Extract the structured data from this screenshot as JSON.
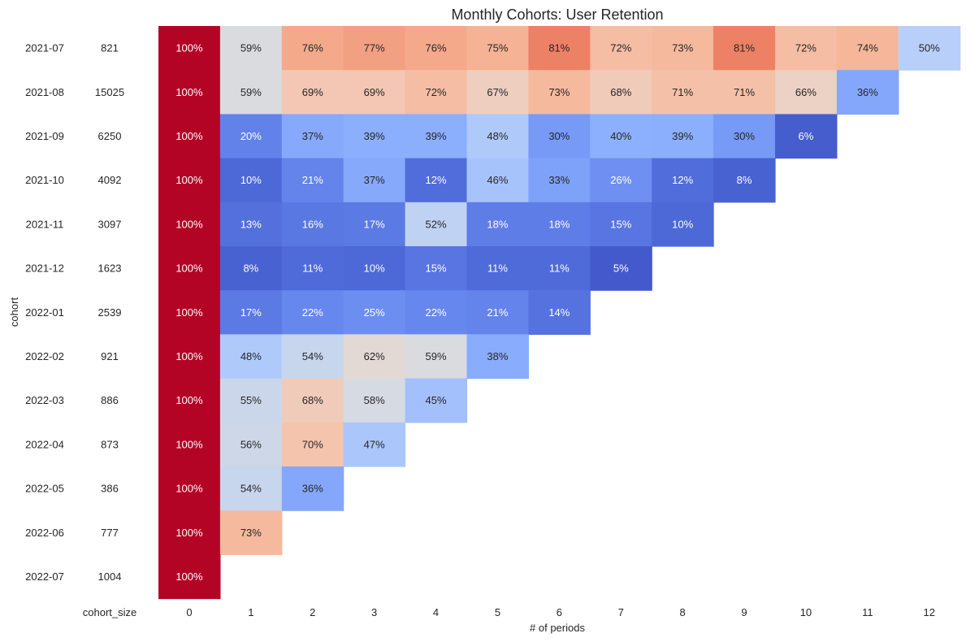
{
  "chart_data": {
    "type": "heatmap",
    "title": "Monthly Cohorts: User Retention",
    "xlabel": "# of periods",
    "ylabel": "cohort",
    "size_column_label": "cohort_size",
    "x_categories": [
      "0",
      "1",
      "2",
      "3",
      "4",
      "5",
      "6",
      "7",
      "8",
      "9",
      "10",
      "11",
      "12"
    ],
    "y_categories": [
      "2021-07",
      "2021-08",
      "2021-09",
      "2021-10",
      "2021-11",
      "2021-12",
      "2022-01",
      "2022-02",
      "2022-03",
      "2022-04",
      "2022-05",
      "2022-06",
      "2022-07"
    ],
    "cohort_size": [
      "821",
      "15025",
      "6250",
      "4092",
      "3097",
      "1623",
      "2539",
      "921",
      "886",
      "873",
      "386",
      "777",
      "1004"
    ],
    "value_format": "percent",
    "colormap": "coolwarm",
    "colorscale_range": [
      0,
      1
    ],
    "values": [
      [
        100,
        59,
        76,
        77,
        76,
        75,
        81,
        72,
        73,
        81,
        72,
        74,
        50
      ],
      [
        100,
        59,
        69,
        69,
        72,
        67,
        73,
        68,
        71,
        71,
        66,
        36
      ],
      [
        100,
        20,
        37,
        39,
        39,
        48,
        30,
        40,
        39,
        30,
        6
      ],
      [
        100,
        10,
        21,
        37,
        12,
        46,
        33,
        26,
        12,
        8
      ],
      [
        100,
        13,
        16,
        17,
        52,
        18,
        18,
        15,
        10
      ],
      [
        100,
        8,
        11,
        10,
        15,
        11,
        11,
        5
      ],
      [
        100,
        17,
        22,
        25,
        22,
        21,
        14
      ],
      [
        100,
        48,
        54,
        62,
        59,
        38
      ],
      [
        100,
        55,
        68,
        58,
        45
      ],
      [
        100,
        56,
        70,
        47
      ],
      [
        100,
        54,
        36
      ],
      [
        100,
        73
      ],
      [
        100
      ]
    ],
    "colors": {
      "size_column_background": "#ffffff",
      "text_dark": "#262626",
      "text_light": "#ffffff"
    }
  }
}
